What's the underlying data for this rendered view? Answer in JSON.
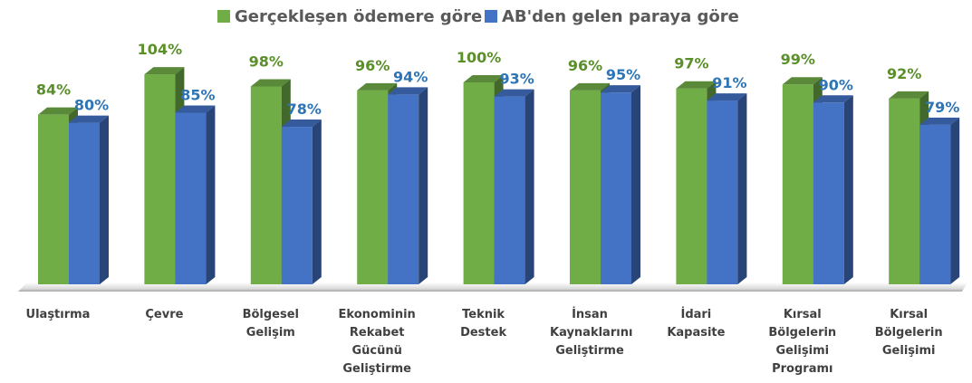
{
  "chart_data": {
    "type": "bar",
    "categories": [
      "Ulaştırma",
      "Çevre",
      "Bölgesel Gelişim",
      "Ekonominin Rekabet Gücünü Geliştirme",
      "Teknik Destek",
      "İnsan Kaynaklarını Geliştirme",
      "İdari Kapasite",
      "Kırsal Bölgelerin Gelişimi Programı",
      "Kırsal Bölgelerin Gelişimi"
    ],
    "legend": "top",
    "series": [
      {
        "name": "Gerçekleşen ödemere göre",
        "color": "#70ad47",
        "values": [
          84,
          104,
          98,
          96,
          100,
          96,
          97,
          99,
          92
        ],
        "value_labels": [
          "84%",
          "104%",
          "98%",
          "96%",
          "100%",
          "96%",
          "97%",
          "99%",
          "92%"
        ]
      },
      {
        "name": "AB'den gelen paraya göre",
        "color": "#4472c4",
        "values": [
          80,
          85,
          78,
          94,
          93,
          95,
          91,
          90,
          79
        ],
        "value_labels": [
          "80%",
          "85%",
          "78%",
          "94%",
          "93%",
          "95%",
          "91%",
          "90%",
          "79%"
        ]
      }
    ]
  }
}
